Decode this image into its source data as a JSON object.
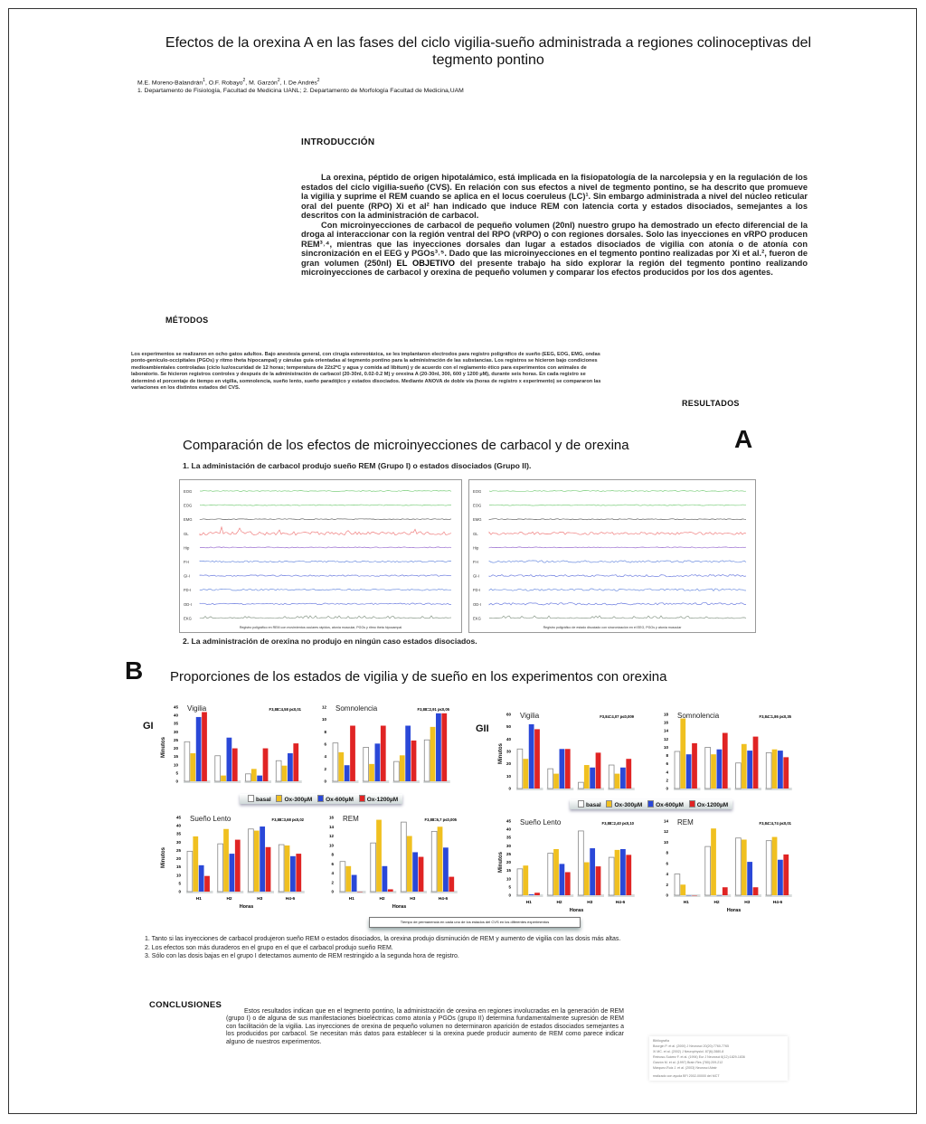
{
  "title": "Efectos de la orexina A en las fases del ciclo vigilia-sueño administrada a regiones colinoceptivas del tegmento pontino",
  "authors": {
    "names": [
      {
        "name": "M.E. Moreno-Balandrán",
        "sup": "1"
      },
      {
        "name": "O.F. Robayo",
        "sup": "2"
      },
      {
        "name": "M. Garzón",
        "sup": "2"
      },
      {
        "name": "I. De Andrés",
        "sup": "2"
      }
    ],
    "affiliations": "1. Departamento de Fisiología, Facultad de Medicina UANL; 2. Departamento de Morfología Facultad de Medicina,UAM"
  },
  "introduccion": {
    "heading": "INTRODUCCIÓN",
    "p1": "La orexina, péptido de origen hipotalámico, está implicada en la fisiopatología de la narcolepsia y en la regulación de los estados del ciclo vigilia-sueño (CVS). En relación con sus efectos a nivel de tegmento pontino, se ha descrito que promueve la vigilia y suprime el REM cuando se aplica en el locus coeruleus (LC)¹. Sin embargo administrada a nivel del núcleo reticular oral del puente (RPO) Xi et al² han indicado que induce REM con latencia corta y estados disociados, semejantes a los descritos con la administración de carbacol.",
    "p2a": "Con microinyecciones de carbacol de pequeño volumen (20nl) nuestro grupo ha demostrado un efecto diferencial de la droga al interaccionar con la región ventral del RPO (vRPO) o con regiones dorsales. Solo las inyecciones en vRPO producen REM³˒⁴, mientras que las inyecciones dorsales dan lugar a estados disociados de vigilia con atonía o de atonía con sincronización en el EEG y PGOs³˒⁵. Dado que las microinyecciones en el tegmento pontino realizadas por Xi et al.², fueron de gran volumen (250nl)",
    "p2_bold": "EL OBJETIVO",
    "p2b": "del presente trabajo ha sido explorar la región del tegmento pontino realizando microinyecciones de carbacol y orexina de pequeño volumen y comparar los efectos producidos por los dos agentes."
  },
  "metodos": {
    "heading": "MÉTODOS",
    "text": "Los experimentos se realizaron en ocho gatos adultos. Bajo anestesia general, con cirugía estereotáxica, se les implantaron electrodos para registro poligráfico de sueño (EEG, EOG, EMG, ondas ponto-genículo-occipitales (PGOs) y ritmo theta hipocampal) y cánulas guía orientadas al tegmento pontino para la administración de las substancias. Los registros se hicieron bajo condiciones medioambientales controladas (ciclo luz/oscuridad de 12 horas; temperatura de 22±2ºC y agua y comida ad libitum) y de acuerdo con el reglamento ético para experimentos con animales de laboratorio. Se hicieron registros controles y después de la administración de carbacol (20-30nl, 0.02-0.2 M) y orexina A (20-30nl, 300, 600 y 1200 µM), durante seis horas. En cada registro se determinó el porcentaje de tiempo en vigilia, somnolencia, sueño lento, sueño paradójico y estados disociados. Mediante ANOVA de doble vía (horas de registro x experimento) se compararon las variaciones en los distintos estados del CVS."
  },
  "resultados": {
    "heading": "RESULTADOS",
    "section_a": {
      "letter": "A",
      "title": "Comparación de los efectos de microinyecciones de carbacol y de orexina",
      "point1": "1. La administación de carbacol produjo sueño REM (Grupo I)  o estados disociados (Grupo II).",
      "point2": "2. La administración de orexina no produjo en ningún caso estados disociados.",
      "trace_labels": [
        "EOG",
        "EOG",
        "EMG",
        "GL",
        "Hip",
        "FI-I",
        "GI-I",
        "FD-I",
        "OD-I",
        "EKG"
      ],
      "trace_colors": [
        "#7fcf7f",
        "#7fcf7f",
        "#666666",
        "#f08080",
        "#9a6fd0",
        "#6f8fe0",
        "#6f7fe0",
        "#6f8fe0",
        "#6f7fe0",
        "#8a9a8a"
      ],
      "left_caption": "Registro poligráfico en REM con movimientos oculares rápidos, atonía muscular, PGOs y ritmo theta hipocampal",
      "right_caption": "Registro poligráfico de estado disociado con sincronización en el EEG, PGOs y atonía muscular"
    },
    "section_b": {
      "letter": "B",
      "title": "Proporciones de los estados de vigilia y de sueño en los experimentos con orexina",
      "group1": "GI",
      "group2": "GII",
      "ylabel": "Minutos",
      "xlabel": "Horas",
      "legend": [
        "basal",
        "Ox-300µM",
        "Ox-600µM",
        "Ox-1200µM"
      ],
      "caption": "Tiempo de permanencia en cada uno de los estados del CVS en los diferentes experimentos"
    },
    "points": [
      "1. Tanto si las inyecciones de carbacol produjeron sueño REM o estados disociados, la orexina produjo disminución de REM y aumento de vigilia con las dosis más altas.",
      "2. Los efectos son más duraderos en el grupo en el que el carbacol produjo sueño REM.",
      "3. Sólo con las dosis bajas en el grupo I detectamos aumento de REM restringido a la segunda hora de registro."
    ]
  },
  "conclusiones": {
    "heading": "CONCLUSIONES",
    "text": "Estos resultados indican que en el tegmento pontino, la administración de orexina en regiones involucradas en la generación de REM (grupo I) o de alguna de sus manifestaciones bioeléctricas como atonía y PGOs (grupo II) determina fundamentalmente supresión de REM con facilitación de la vigilia. Las inyecciones de orexina de pequeño volumen no determinaron aparición de estados disociados semejantes a los producidos por carbacol. Se necesitan más datos para establecer si la orexina puede producir aumento de REM como parece indicar alguno de nuestros experimentos."
  },
  "referencias": [
    "Bibliografía",
    "Bourgin P. et al. (2000) J Neurosci 20(20):7760-7765",
    "Xi MC. et al. (2002) J Neurophysiol. 87(6):2880-8",
    "Reinoso-Suárez F. et al. (1994) Eur J Neurosci 6(12):1829-1836",
    "Garzón M. et al. (1997) Brain Res (780):209-212",
    "Márquez-Ruiz J. et al. (2003) Neurosci Abstr",
    "realizado con ayuda BFI 2002-00000 del MCT"
  ],
  "colors": {
    "basal": "#ffffff",
    "ox300": "#f0c020",
    "ox600": "#2a48d8",
    "ox1200": "#e02424"
  },
  "chart_data": [
    {
      "type": "bar",
      "group": "GI",
      "title": "Vigilia",
      "stat": "F3,88=4,58 p≤0,01",
      "ylim": [
        0,
        45
      ],
      "ystep": 5,
      "categories": [
        "H1",
        "H2",
        "H3",
        "H4-6"
      ],
      "series": [
        {
          "name": "basal",
          "values": [
            24,
            15.5,
            4.5,
            12.5
          ]
        },
        {
          "name": "Ox-300µM",
          "values": [
            17,
            3.5,
            7.5,
            9.5
          ]
        },
        {
          "name": "Ox-600µM",
          "values": [
            39,
            26.5,
            3.5,
            17
          ]
        },
        {
          "name": "Ox-1200µM",
          "values": [
            42,
            20,
            20,
            23
          ]
        }
      ]
    },
    {
      "type": "bar",
      "group": "GI",
      "title": "Somnolencia",
      "stat": "F3,88=2,91 p≤0,05",
      "ylim": [
        0,
        12
      ],
      "ystep": 2,
      "categories": [
        "H1",
        "H2",
        "H3",
        "H4-6"
      ],
      "series": [
        {
          "name": "basal",
          "values": [
            6.2,
            5.5,
            3.2,
            6.7
          ]
        },
        {
          "name": "Ox-300µM",
          "values": [
            4.7,
            2.8,
            4.2,
            8.8
          ]
        },
        {
          "name": "Ox-600µM",
          "values": [
            2.6,
            6.1,
            9,
            11
          ]
        },
        {
          "name": "Ox-1200µM",
          "values": [
            9,
            9,
            6.6,
            11
          ]
        }
      ]
    },
    {
      "type": "bar",
      "group": "GII",
      "title": "Vigilia",
      "stat": "F3,84=4,07 p≤0,009",
      "ylim": [
        0,
        60
      ],
      "ystep": 10,
      "categories": [
        "H1",
        "H2",
        "H3",
        "H4-6"
      ],
      "series": [
        {
          "name": "basal",
          "values": [
            32,
            16,
            5,
            19
          ]
        },
        {
          "name": "Ox-300µM",
          "values": [
            24,
            12,
            19,
            12
          ]
        },
        {
          "name": "Ox-600µM",
          "values": [
            52,
            32,
            17,
            17
          ]
        },
        {
          "name": "Ox-1200µM",
          "values": [
            48,
            32,
            29,
            24
          ]
        }
      ]
    },
    {
      "type": "bar",
      "group": "GII",
      "title": "Somnolencia",
      "stat": "F3,84=1,86 p≤0,35",
      "ylim": [
        0,
        18
      ],
      "ystep": 2,
      "categories": [
        "H1",
        "H2",
        "H3",
        "H4-6"
      ],
      "series": [
        {
          "name": "basal",
          "values": [
            9,
            10,
            6.2,
            8.7
          ]
        },
        {
          "name": "Ox-300µM",
          "values": [
            17,
            8.3,
            10.8,
            9.5
          ]
        },
        {
          "name": "Ox-600µM",
          "values": [
            8.3,
            9.5,
            9.2,
            9.2
          ]
        },
        {
          "name": "Ox-1200µM",
          "values": [
            11,
            13.5,
            12.6,
            7.6
          ]
        }
      ]
    },
    {
      "type": "bar",
      "group": "GI",
      "title": "Sueño Lento",
      "stat": "F3,88=3,68 p≤0,02",
      "ylim": [
        0,
        45
      ],
      "ystep": 5,
      "categories": [
        "H1",
        "H2",
        "H3",
        "H4-6"
      ],
      "series": [
        {
          "name": "basal",
          "values": [
            24.5,
            29,
            38,
            28.5
          ]
        },
        {
          "name": "Ox-300µM",
          "values": [
            33.5,
            38,
            37,
            28
          ]
        },
        {
          "name": "Ox-600µM",
          "values": [
            16,
            23,
            39.5,
            21.5
          ]
        },
        {
          "name": "Ox-1200µM",
          "values": [
            9.5,
            31.5,
            27,
            23
          ]
        }
      ]
    },
    {
      "type": "bar",
      "group": "GI",
      "title": "REM",
      "stat": "F3,88=6,7 p≤0,005",
      "ylim": [
        0,
        16
      ],
      "ystep": 2,
      "categories": [
        "H1",
        "H2",
        "H3",
        "H4-6"
      ],
      "series": [
        {
          "name": "basal",
          "values": [
            6.5,
            10.5,
            15,
            13
          ]
        },
        {
          "name": "Ox-300µM",
          "values": [
            5.5,
            15.5,
            12,
            14
          ]
        },
        {
          "name": "Ox-600µM",
          "values": [
            3.6,
            5.5,
            8.5,
            9.5
          ]
        },
        {
          "name": "Ox-1200µM",
          "values": [
            0,
            0.5,
            7.5,
            3.2
          ]
        }
      ]
    },
    {
      "type": "bar",
      "group": "GII",
      "title": "Sueño Lento",
      "stat": "F3,88=2,40 p≤0,10",
      "ylim": [
        0,
        45
      ],
      "ystep": 5,
      "categories": [
        "H1",
        "H2",
        "H3",
        "H4-6"
      ],
      "series": [
        {
          "name": "basal",
          "values": [
            16,
            25.5,
            39,
            23
          ]
        },
        {
          "name": "Ox-300µM",
          "values": [
            18,
            28,
            20,
            27.5
          ]
        },
        {
          "name": "Ox-600µM",
          "values": [
            0.5,
            19,
            28.5,
            28
          ]
        },
        {
          "name": "Ox-1200µM",
          "values": [
            1.5,
            14,
            17.5,
            24.5
          ]
        }
      ]
    },
    {
      "type": "bar",
      "group": "GII",
      "title": "REM",
      "stat": "F3,84=4,74 p≤0,01",
      "ylim": [
        0,
        14
      ],
      "ystep": 2,
      "categories": [
        "H1",
        "H2",
        "H3",
        "H4-6"
      ],
      "series": [
        {
          "name": "basal",
          "values": [
            4,
            9.2,
            10.8,
            10.3
          ]
        },
        {
          "name": "Ox-300µM",
          "values": [
            2,
            12.6,
            10.5,
            11
          ]
        },
        {
          "name": "Ox-600µM",
          "values": [
            0,
            0,
            6.3,
            6.7
          ]
        },
        {
          "name": "Ox-1200µM",
          "values": [
            0,
            1.5,
            1.5,
            7.7
          ]
        }
      ]
    }
  ]
}
